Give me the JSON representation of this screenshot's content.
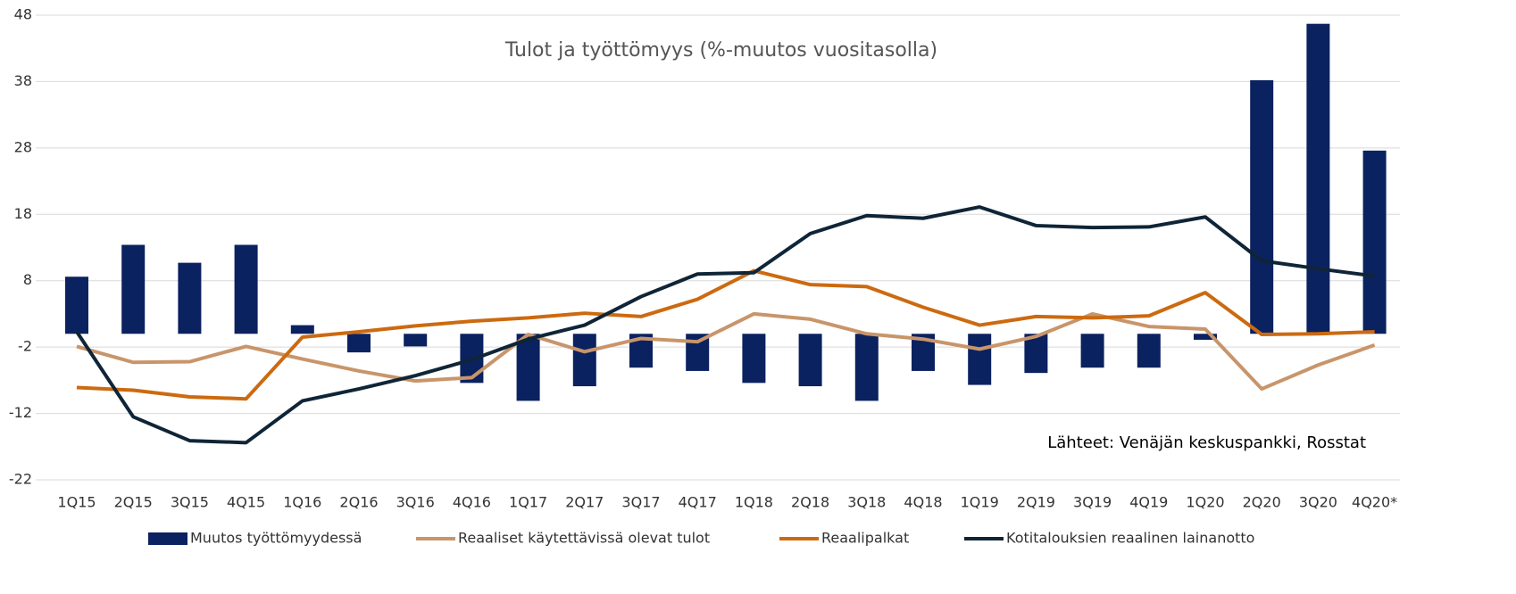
{
  "chart_data": {
    "type": "bar_line",
    "title": "Tulot ja työttömyys (%-muutos vuositasolla)",
    "annotation": "Lähteet: Venäjän keskuspankki, Rosstat",
    "categories": [
      "1Q15",
      "2Q15",
      "3Q15",
      "4Q15",
      "1Q16",
      "2Q16",
      "3Q16",
      "4Q16",
      "1Q17",
      "2Q17",
      "3Q17",
      "4Q17",
      "1Q18",
      "2Q18",
      "3Q18",
      "4Q18",
      "1Q19",
      "2Q19",
      "3Q19",
      "4Q19",
      "1Q20",
      "2Q20",
      "3Q20",
      "4Q20*"
    ],
    "ylim": [
      -22,
      48
    ],
    "yticks": [
      -22,
      -12,
      -2,
      8,
      18,
      28,
      38,
      48
    ],
    "grid": true,
    "legend": "bottom",
    "series": [
      {
        "name": "Muutos työttömyydessä",
        "type": "bar",
        "color": "#0b2260",
        "values": [
          8.6,
          13.4,
          10.7,
          13.4,
          1.3,
          -2.8,
          -1.9,
          -7.4,
          -10.1,
          -7.9,
          -5.1,
          -5.6,
          -7.4,
          -7.9,
          -10.1,
          -5.6,
          -7.7,
          -5.9,
          -5.1,
          -5.1,
          -0.9,
          38.2,
          46.7,
          27.6
        ]
      },
      {
        "name": "Reaaliset käytettävissä olevat tulot",
        "type": "line",
        "color": "#c8956a",
        "values": [
          -1.9,
          -4.3,
          -4.2,
          -1.9,
          -3.8,
          -5.6,
          -7.1,
          -6.6,
          -0.1,
          -2.7,
          -0.7,
          -1.2,
          3.0,
          2.2,
          0,
          -0.8,
          -2.3,
          -0.4,
          3.0,
          1.1,
          0.7,
          -8.3,
          -4.7,
          -1.7
        ]
      },
      {
        "name": "Reaalipalkat",
        "type": "line",
        "color": "#cc6a10",
        "values": [
          -8.1,
          -8.5,
          -9.5,
          -9.8,
          -0.5,
          0.3,
          1.2,
          1.9,
          2.4,
          3.1,
          2.6,
          5.2,
          9.5,
          7.4,
          7.1,
          4.0,
          1.3,
          2.6,
          2.4,
          2.7,
          6.2,
          -0.1,
          0,
          0.3
        ]
      },
      {
        "name": "Kotitalouksien reaalinen lainanotto",
        "type": "line",
        "color": "#0f2537",
        "values": [
          0.3,
          -12.5,
          -16.1,
          -16.4,
          -10.1,
          -8.3,
          -6.3,
          -3.9,
          -0.8,
          1.3,
          5.6,
          9.0,
          9.2,
          15.1,
          17.8,
          17.4,
          19.1,
          16.3,
          16.0,
          16.1,
          17.6,
          11.0,
          9.8,
          8.7
        ]
      }
    ]
  }
}
